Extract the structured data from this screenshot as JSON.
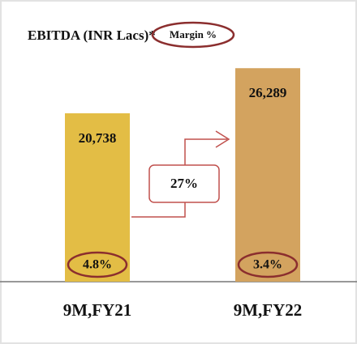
{
  "chart_data": {
    "type": "bar",
    "title": "EBITDA (INR Lacs)*",
    "margin_legend": "Margin %",
    "categories": [
      "9M,FY21",
      "9M,FY22"
    ],
    "values": [
      20738,
      26289
    ],
    "value_labels": [
      "20,738",
      "26,289"
    ],
    "colors": [
      "#e3bd45",
      "#d3a35f"
    ],
    "margins": [
      4.8,
      3.4
    ],
    "margin_labels": [
      "4.8%",
      "3.4%"
    ],
    "growth": 27,
    "growth_label": "27%",
    "ylim": [
      0,
      30000
    ]
  }
}
